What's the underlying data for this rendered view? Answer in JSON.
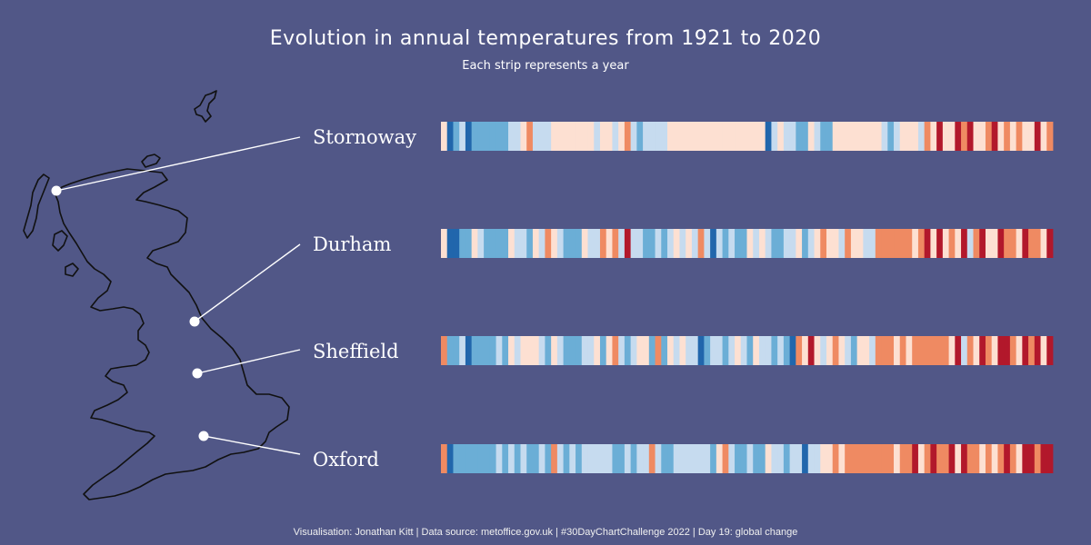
{
  "title": "Evolution in annual temperatures from 1921 to 2020",
  "subtitle": "Each strip represents a year",
  "caption": "Visualisation: Jonathan Kitt | Data source: metoffice.gov.uk | #30DayChartChallenge 2022 | Day 19: global change",
  "colors": {
    "background": "#515787",
    "scale": [
      "#2166ac",
      "#6baed6",
      "#c6dbef",
      "#fde0d2",
      "#ef8a62",
      "#b2182b"
    ],
    "map_stroke": "#111111",
    "marker": "#ffffff"
  },
  "chart_data": {
    "type": "heatmap",
    "description_scale": "temperature anomaly class: 0 = coldest (dark blue) to 5 = warmest (dark red)",
    "years": [
      1921,
      2020
    ],
    "series": [
      {
        "name": "Stornoway",
        "values": [
          3,
          0,
          1,
          2,
          0,
          1,
          1,
          1,
          1,
          1,
          1,
          2,
          2,
          3,
          4,
          2,
          2,
          2,
          3,
          3,
          3,
          3,
          3,
          3,
          3,
          2,
          3,
          3,
          2,
          3,
          4,
          2,
          1,
          2,
          2,
          2,
          2,
          3,
          3,
          3,
          3,
          3,
          3,
          3,
          3,
          3,
          3,
          3,
          3,
          3,
          3,
          3,
          3,
          0,
          2,
          3,
          2,
          2,
          1,
          1,
          3,
          2,
          1,
          1,
          3,
          3,
          3,
          3,
          3,
          3,
          3,
          3,
          2,
          1,
          2,
          3,
          3,
          3,
          2,
          4,
          3,
          5,
          3,
          3,
          5,
          4,
          5,
          3,
          3,
          4,
          5,
          3,
          4,
          3,
          4,
          3,
          3,
          5,
          3,
          4
        ]
      },
      {
        "name": "Durham",
        "values": [
          3,
          0,
          0,
          1,
          1,
          3,
          2,
          1,
          1,
          1,
          1,
          3,
          2,
          2,
          1,
          3,
          2,
          4,
          3,
          2,
          1,
          1,
          1,
          3,
          2,
          2,
          4,
          3,
          4,
          2,
          5,
          2,
          2,
          1,
          1,
          2,
          1,
          2,
          3,
          2,
          3,
          2,
          4,
          2,
          0,
          2,
          1,
          2,
          1,
          1,
          3,
          2,
          3,
          2,
          1,
          1,
          2,
          2,
          3,
          1,
          2,
          3,
          4,
          3,
          3,
          2,
          4,
          3,
          3,
          2,
          2,
          4,
          4,
          4,
          4,
          4,
          4,
          3,
          4,
          5,
          3,
          5,
          3,
          4,
          3,
          5,
          2,
          4,
          5,
          3,
          3,
          5,
          4,
          4,
          3,
          5,
          4,
          4,
          3,
          5
        ]
      },
      {
        "name": "Sheffield",
        "values": [
          4,
          1,
          1,
          2,
          0,
          1,
          1,
          1,
          1,
          2,
          1,
          3,
          2,
          3,
          3,
          3,
          2,
          1,
          3,
          2,
          1,
          1,
          1,
          2,
          2,
          3,
          1,
          3,
          4,
          2,
          1,
          2,
          3,
          3,
          1,
          4,
          1,
          3,
          2,
          3,
          2,
          2,
          0,
          1,
          2,
          2,
          1,
          2,
          3,
          2,
          1,
          3,
          2,
          2,
          1,
          2,
          1,
          0,
          4,
          3,
          5,
          3,
          2,
          3,
          4,
          3,
          2,
          1,
          3,
          3,
          2,
          4,
          4,
          4,
          3,
          4,
          3,
          4,
          4,
          4,
          4,
          4,
          4,
          3,
          5,
          2,
          4,
          3,
          5,
          4,
          3,
          5,
          5,
          4,
          3,
          5,
          4,
          5,
          3,
          5
        ]
      },
      {
        "name": "Oxford",
        "values": [
          4,
          0,
          1,
          1,
          1,
          1,
          1,
          1,
          1,
          2,
          1,
          2,
          1,
          2,
          1,
          1,
          2,
          1,
          4,
          2,
          1,
          2,
          1,
          2,
          2,
          2,
          2,
          2,
          1,
          1,
          2,
          1,
          2,
          2,
          4,
          2,
          1,
          1,
          2,
          2,
          2,
          2,
          2,
          2,
          1,
          3,
          4,
          2,
          1,
          1,
          2,
          1,
          1,
          3,
          2,
          2,
          1,
          2,
          2,
          0,
          2,
          2,
          3,
          3,
          4,
          3,
          4,
          4,
          4,
          4,
          4,
          4,
          4,
          4,
          3,
          4,
          4,
          5,
          3,
          4,
          5,
          4,
          4,
          5,
          3,
          5,
          4,
          4,
          3,
          4,
          3,
          4,
          5,
          4,
          3,
          5,
          5,
          4,
          5,
          5
        ]
      }
    ]
  }
}
